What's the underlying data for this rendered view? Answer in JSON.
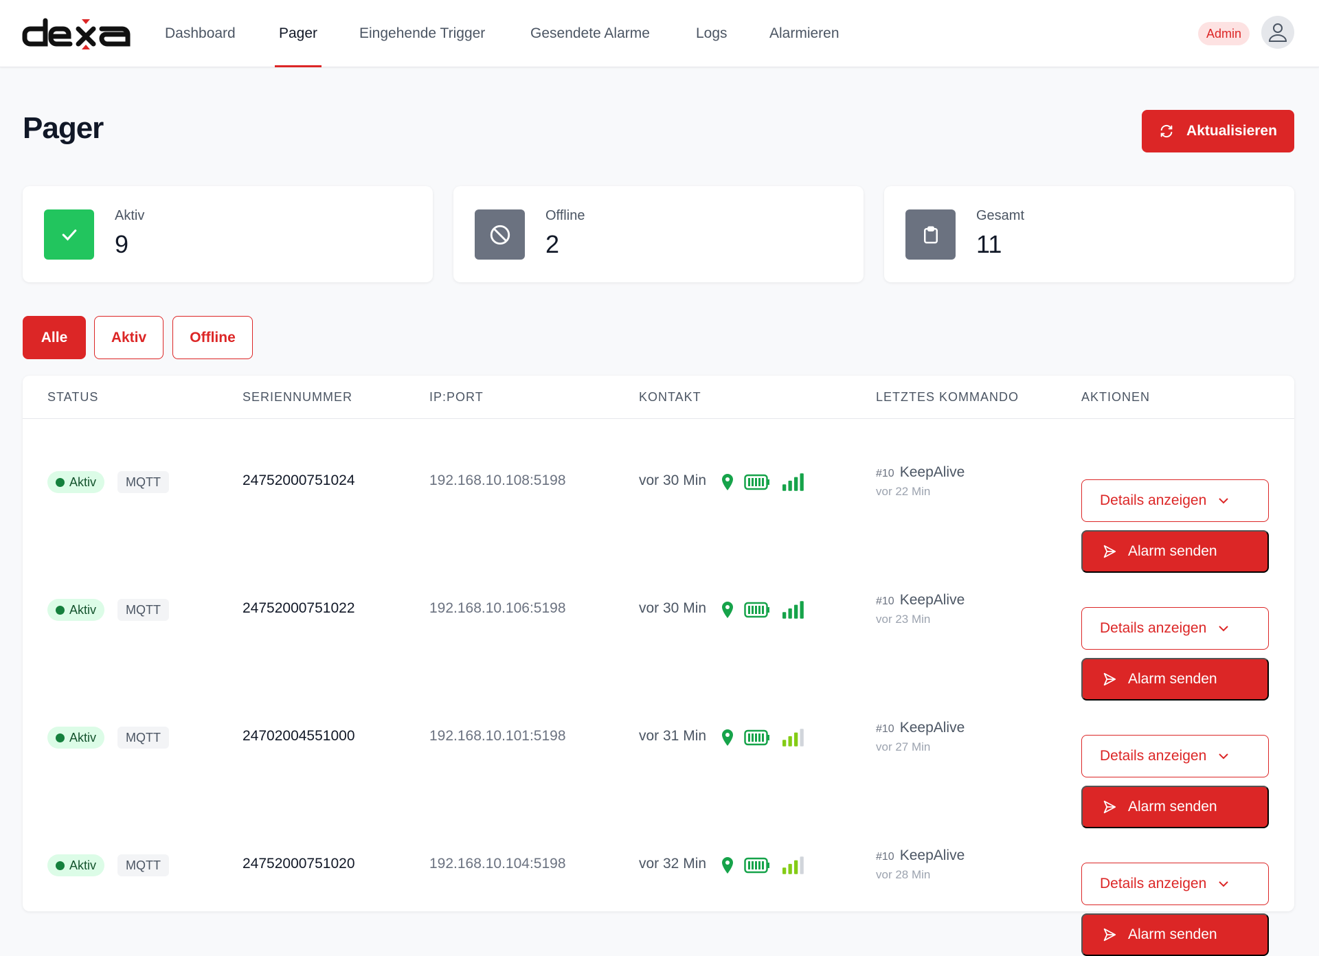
{
  "header": {
    "logo": "dexa",
    "nav": [
      {
        "label": "Dashboard",
        "active": false
      },
      {
        "label": "Pager",
        "active": true
      },
      {
        "label": "Eingehende Trigger",
        "active": false
      },
      {
        "label": "Gesendete Alarme",
        "active": false
      },
      {
        "label": "Logs",
        "active": false
      },
      {
        "label": "Alarmieren",
        "active": false
      }
    ],
    "role_badge": "Admin",
    "avatar_icon": "user-icon"
  },
  "page": {
    "title": "Pager",
    "refresh_label": "Aktualisieren"
  },
  "stats": [
    {
      "label": "Aktiv",
      "value": "9",
      "icon": "check-icon",
      "color": "#22c55e"
    },
    {
      "label": "Offline",
      "value": "2",
      "icon": "ban-icon",
      "color": "#6b7280"
    },
    {
      "label": "Gesamt",
      "value": "11",
      "icon": "clipboard-icon",
      "color": "#6b7280"
    }
  ],
  "filters": [
    {
      "label": "Alle",
      "active": true
    },
    {
      "label": "Aktiv",
      "active": false
    },
    {
      "label": "Offline",
      "active": false
    }
  ],
  "table": {
    "columns": [
      "STATUS",
      "SERIENNUMMER",
      "IP:PORT",
      "KONTAKT",
      "LETZTES KOMMANDO",
      "AKTIONEN"
    ],
    "rows": [
      {
        "status": "Aktiv",
        "protocol": "MQTT",
        "serial": "24752000751024",
        "ip": "192.168.10.108:5198",
        "contact": "vor 30 Min",
        "signal_bars": 4,
        "cmd_no": "#10",
        "cmd": "KeepAlive",
        "cmd_ago": "vor 22 Min",
        "details": "Details anzeigen",
        "alarm": "Alarm senden"
      },
      {
        "status": "Aktiv",
        "protocol": "MQTT",
        "serial": "24752000751022",
        "ip": "192.168.10.106:5198",
        "contact": "vor 30 Min",
        "signal_bars": 4,
        "cmd_no": "#10",
        "cmd": "KeepAlive",
        "cmd_ago": "vor 23 Min",
        "details": "Details anzeigen",
        "alarm": "Alarm senden"
      },
      {
        "status": "Aktiv",
        "protocol": "MQTT",
        "serial": "24702004551000",
        "ip": "192.168.10.101:5198",
        "contact": "vor 31 Min",
        "signal_bars": 3,
        "cmd_no": "#10",
        "cmd": "KeepAlive",
        "cmd_ago": "vor 27 Min",
        "details": "Details anzeigen",
        "alarm": "Alarm senden"
      },
      {
        "status": "Aktiv",
        "protocol": "MQTT",
        "serial": "24752000751020",
        "ip": "192.168.10.104:5198",
        "contact": "vor 32 Min",
        "signal_bars": 3,
        "cmd_no": "#10",
        "cmd": "KeepAlive",
        "cmd_ago": "vor 28 Min",
        "details": "Details anzeigen",
        "alarm": "Alarm senden"
      }
    ]
  },
  "colors": {
    "accent": "#dc2626",
    "success": "#16a34a"
  }
}
